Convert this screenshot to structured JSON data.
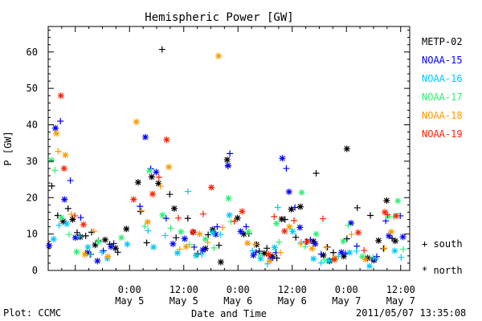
{
  "chart_data": {
    "type": "scatter",
    "title": "Hemispheric Power [GW]",
    "xlabel": "Date and Time",
    "ylabel": "P [GW]",
    "ylim": [
      0,
      67
    ],
    "yticks": [
      0,
      10,
      20,
      30,
      40,
      50,
      60
    ],
    "xlim": [
      "2011-05-04 06:00",
      "2011-05-07 14:00"
    ],
    "xticks": [
      {
        "at": "2011-05-05 00:00",
        "time": "0:00",
        "date": "May 5"
      },
      {
        "at": "2011-05-05 12:00",
        "time": "12:00",
        "date": "May 5"
      },
      {
        "at": "2011-05-06 00:00",
        "time": "0:00",
        "date": "May 6"
      },
      {
        "at": "2011-05-06 12:00",
        "time": "12:00",
        "date": "May 6"
      },
      {
        "at": "2011-05-07 00:00",
        "time": "0:00",
        "date": "May 7"
      },
      {
        "at": "2011-05-07 12:00",
        "time": "12:00",
        "date": "May 7"
      }
    ],
    "marker_legend": [
      {
        "marker": "plus",
        "label": "+ south"
      },
      {
        "marker": "star",
        "label": "* north"
      }
    ],
    "series": [
      {
        "name": "METP-02",
        "color": "#000000",
        "south": [
          [
            "2011-05-04 06:48",
            23.2
          ],
          [
            "2011-05-04 08:06",
            15.1
          ],
          [
            "2011-05-04 10:24",
            17.0
          ],
          [
            "2011-05-04 12:24",
            10.4
          ],
          [
            "2011-05-04 14:18",
            9.5
          ],
          [
            "2011-05-04 15:36",
            10.5
          ],
          [
            "2011-05-04 17:06",
            8.1
          ],
          [
            "2011-05-04 19:36",
            7.2
          ],
          [
            "2011-05-04 21:24",
            5.0
          ],
          [
            "2011-05-05 02:24",
            16.2
          ],
          [
            "2011-05-05 03:48",
            7.6
          ],
          [
            "2011-05-05 07:12",
            60.7
          ],
          [
            "2011-05-05 08:54",
            20.9
          ],
          [
            "2011-05-05 10:18",
            9.0
          ],
          [
            "2011-05-05 12:54",
            14.3
          ],
          [
            "2011-05-05 15:06",
            4.6
          ],
          [
            "2011-05-05 17:24",
            9.8
          ],
          [
            "2011-05-05 19:48",
            6.9
          ],
          [
            "2011-05-05 21:48",
            28.7
          ],
          [
            "2011-05-06 02:24",
            10.1
          ],
          [
            "2011-05-06 04:42",
            5.3
          ],
          [
            "2011-05-06 06:24",
            6.1
          ],
          [
            "2011-05-06 08:36",
            3.4
          ],
          [
            "2011-05-06 10:24",
            14.0
          ],
          [
            "2011-05-06 12:48",
            9.1
          ],
          [
            "2011-05-06 15:06",
            7.9
          ],
          [
            "2011-05-06 17:18",
            26.7
          ],
          [
            "2011-05-06 19:48",
            6.4
          ],
          [
            "2011-05-06 21:06",
            4.9
          ],
          [
            "2011-05-07 00:06",
            8.7
          ],
          [
            "2011-05-07 02:24",
            17.2
          ],
          [
            "2011-05-07 05:18",
            15.1
          ],
          [
            "2011-05-07 08:12",
            6.0
          ],
          [
            "2011-05-07 10:06",
            8.8
          ]
        ],
        "north": [
          [
            "2011-05-04 09:18",
            13.5
          ],
          [
            "2011-05-04 11:24",
            14.0
          ],
          [
            "2011-05-04 13:06",
            9.2
          ],
          [
            "2011-05-04 16:24",
            7.0
          ],
          [
            "2011-05-04 18:36",
            8.4
          ],
          [
            "2011-05-04 20:54",
            6.1
          ],
          [
            "2011-05-04 23:18",
            11.4
          ],
          [
            "2011-05-05 01:54",
            24.2
          ],
          [
            "2011-05-05 04:54",
            25.7
          ],
          [
            "2011-05-05 06:24",
            23.9
          ],
          [
            "2011-05-05 09:54",
            17.0
          ],
          [
            "2011-05-05 14:06",
            10.5
          ],
          [
            "2011-05-05 16:48",
            6.0
          ],
          [
            "2011-05-05 18:24",
            11.2
          ],
          [
            "2011-05-05 20:12",
            2.3
          ],
          [
            "2011-05-05 21:36",
            30.4
          ],
          [
            "2011-05-05 23:54",
            14.4
          ],
          [
            "2011-05-06 01:18",
            10.0
          ],
          [
            "2011-05-06 04:06",
            7.1
          ],
          [
            "2011-05-06 05:48",
            4.7
          ],
          [
            "2011-05-06 07:36",
            3.8
          ],
          [
            "2011-05-06 09:42",
            14.1
          ],
          [
            "2011-05-06 11:48",
            16.8
          ],
          [
            "2011-05-06 13:48",
            17.5
          ],
          [
            "2011-05-06 16:42",
            8.0
          ],
          [
            "2011-05-06 18:54",
            4.2
          ],
          [
            "2011-05-06 20:18",
            2.6
          ],
          [
            "2011-05-06 23:24",
            3.9
          ],
          [
            "2011-05-07 00:06",
            33.4
          ],
          [
            "2011-05-07 04:42",
            3.4
          ],
          [
            "2011-05-07 06:06",
            2.8
          ],
          [
            "2011-05-07 07:06",
            8.2
          ],
          [
            "2011-05-07 08:54",
            19.2
          ],
          [
            "2011-05-07 10:48",
            8.1
          ]
        ]
      },
      {
        "name": "NOAA-15",
        "color": "#0000ff",
        "south": [
          [
            "2011-05-04 08:42",
            41.0
          ],
          [
            "2011-05-04 10:54",
            24.7
          ],
          [
            "2011-05-04 13:12",
            14.5
          ],
          [
            "2011-05-04 15:24",
            4.4
          ],
          [
            "2011-05-04 18:12",
            5.4
          ],
          [
            "2011-05-04 20:30",
            7.4
          ],
          [
            "2011-05-05 02:18",
            17.6
          ],
          [
            "2011-05-05 04:42",
            27.9
          ],
          [
            "2011-05-05 08:06",
            14.3
          ],
          [
            "2011-05-05 14:18",
            6.4
          ],
          [
            "2011-05-05 19:24",
            12.0
          ],
          [
            "2011-05-05 22:12",
            32.1
          ],
          [
            "2011-05-06 01:48",
            12.0
          ],
          [
            "2011-05-06 04:00",
            5.0
          ],
          [
            "2011-05-06 08:24",
            4.9
          ],
          [
            "2011-05-06 10:42",
            28.0
          ],
          [
            "2011-05-06 12:36",
            17.3
          ],
          [
            "2011-05-06 16:00",
            8.4
          ],
          [
            "2011-05-06 18:24",
            4.5
          ],
          [
            "2011-05-06 23:48",
            4.6
          ],
          [
            "2011-05-07 02:18",
            6.7
          ],
          [
            "2011-05-07 06:42",
            3.8
          ],
          [
            "2011-05-07 08:42",
            13.6
          ],
          [
            "2011-05-07 11:54",
            15.0
          ]
        ],
        "north": [
          [
            "2011-05-04 06:12",
            6.8
          ],
          [
            "2011-05-04 07:36",
            39.1
          ],
          [
            "2011-05-04 09:36",
            19.5
          ],
          [
            "2011-05-04 12:00",
            9.0
          ],
          [
            "2011-05-04 14:42",
            4.9
          ],
          [
            "2011-05-04 16:54",
            2.6
          ],
          [
            "2011-05-04 19:54",
            6.5
          ],
          [
            "2011-05-05 03:30",
            36.6
          ],
          [
            "2011-05-05 05:54",
            27.0
          ],
          [
            "2011-05-05 09:36",
            7.3
          ],
          [
            "2011-05-05 12:12",
            8.7
          ],
          [
            "2011-05-05 16:12",
            5.6
          ],
          [
            "2011-05-05 19:06",
            9.9
          ],
          [
            "2011-05-05 21:48",
            28.8
          ],
          [
            "2011-05-06 00:36",
            10.7
          ],
          [
            "2011-05-06 03:24",
            4.2
          ],
          [
            "2011-05-06 07:18",
            3.3
          ],
          [
            "2011-05-06 09:48",
            30.8
          ],
          [
            "2011-05-06 11:18",
            21.6
          ],
          [
            "2011-05-06 13:42",
            11.8
          ],
          [
            "2011-05-06 17:06",
            7.3
          ],
          [
            "2011-05-06 22:54",
            5.0
          ],
          [
            "2011-05-07 01:00",
            13.0
          ],
          [
            "2011-05-07 06:06",
            3.1
          ],
          [
            "2011-05-07 09:24",
            9.5
          ],
          [
            "2011-05-07 12:30",
            9.2
          ]
        ]
      },
      {
        "name": "NOAA-16",
        "color": "#00c8ff",
        "south": [
          [
            "2011-05-04 08:24",
            12.4
          ],
          [
            "2011-05-04 12:54",
            9.3
          ],
          [
            "2011-05-04 17:54",
            5.0
          ],
          [
            "2011-05-05 04:06",
            10.9
          ],
          [
            "2011-05-05 07:54",
            9.6
          ],
          [
            "2011-05-05 12:54",
            21.7
          ],
          [
            "2011-05-05 16:00",
            4.4
          ],
          [
            "2011-05-05 20:06",
            9.9
          ],
          [
            "2011-05-06 03:12",
            5.4
          ],
          [
            "2011-05-06 06:30",
            1.8
          ],
          [
            "2011-05-06 08:48",
            17.3
          ],
          [
            "2011-05-06 14:00",
            7.7
          ],
          [
            "2011-05-06 18:24",
            2.1
          ],
          [
            "2011-05-06 22:12",
            3.9
          ],
          [
            "2011-05-07 02:12",
            5.3
          ],
          [
            "2011-05-07 06:30",
            3.2
          ],
          [
            "2011-05-07 12:06",
            3.6
          ]
        ],
        "north": [
          [
            "2011-05-04 07:12",
            8.6
          ],
          [
            "2011-05-04 10:06",
            12.8
          ],
          [
            "2011-05-04 14:48",
            6.4
          ],
          [
            "2011-05-04 19:06",
            3.3
          ],
          [
            "2011-05-04 23:30",
            7.2
          ],
          [
            "2011-05-05 05:18",
            6.4
          ],
          [
            "2011-05-05 10:36",
            4.8
          ],
          [
            "2011-05-05 14:42",
            4.1
          ],
          [
            "2011-05-05 18:24",
            10.4
          ],
          [
            "2011-05-05 22:06",
            15.2
          ],
          [
            "2011-05-06 05:00",
            3.3
          ],
          [
            "2011-05-06 08:06",
            6.3
          ],
          [
            "2011-05-06 12:06",
            10.7
          ],
          [
            "2011-05-06 16:42",
            3.2
          ],
          [
            "2011-05-06 20:06",
            2.7
          ],
          [
            "2011-05-07 00:42",
            4.9
          ],
          [
            "2011-05-07 05:06",
            1.2
          ],
          [
            "2011-05-07 10:42",
            5.4
          ]
        ]
      },
      {
        "name": "NOAA-17",
        "color": "#33ee77",
        "south": [
          [
            "2011-05-04 07:30",
            27.5
          ],
          [
            "2011-05-04 10:36",
            9.9
          ],
          [
            "2011-05-04 15:12",
            4.3
          ],
          [
            "2011-05-05 03:24",
            12.1
          ],
          [
            "2011-05-05 09:06",
            11.6
          ],
          [
            "2011-05-05 13:18",
            7.1
          ],
          [
            "2011-05-05 18:42",
            6.2
          ],
          [
            "2011-05-05 22:24",
            13.4
          ],
          [
            "2011-05-06 05:00",
            4.2
          ],
          [
            "2011-05-06 09:06",
            7.8
          ],
          [
            "2011-05-06 14:54",
            6.5
          ],
          [
            "2011-05-06 19:06",
            2.9
          ],
          [
            "2011-05-07 00:24",
            12.4
          ],
          [
            "2011-05-07 05:54",
            3.6
          ],
          [
            "2011-05-07 10:30",
            14.7
          ],
          [
            "2011-05-07 12:36",
            5.8
          ]
        ],
        "north": [
          [
            "2011-05-04 06:42",
            30.3
          ],
          [
            "2011-05-04 08:54",
            14.5
          ],
          [
            "2011-05-04 12:18",
            5.1
          ],
          [
            "2011-05-04 17:06",
            7.9
          ],
          [
            "2011-05-04 22:12",
            9.0
          ],
          [
            "2011-05-05 04:24",
            27.4
          ],
          [
            "2011-05-05 07:18",
            15.2
          ],
          [
            "2011-05-05 11:24",
            10.6
          ],
          [
            "2011-05-05 16:48",
            8.6
          ],
          [
            "2011-05-05 21:54",
            19.8
          ],
          [
            "2011-05-06 02:18",
            10.6
          ],
          [
            "2011-05-06 08:30",
            12.9
          ],
          [
            "2011-05-06 14:06",
            21.4
          ],
          [
            "2011-05-06 17:18",
            10.0
          ],
          [
            "2011-05-06 23:18",
            8.0
          ],
          [
            "2011-05-07 03:30",
            3.8
          ],
          [
            "2011-05-07 09:12",
            14.8
          ],
          [
            "2011-05-07 11:24",
            19.1
          ]
        ]
      },
      {
        "name": "NOAA-18",
        "color": "#ff9900",
        "south": [
          [
            "2011-05-04 08:12",
            32.7
          ],
          [
            "2011-05-04 11:06",
            15.4
          ],
          [
            "2011-05-04 16:06",
            10.8
          ],
          [
            "2011-05-05 02:42",
            16.4
          ],
          [
            "2011-05-05 06:54",
            23.1
          ],
          [
            "2011-05-05 11:06",
            5.8
          ],
          [
            "2011-05-05 17:18",
            7.7
          ],
          [
            "2011-05-05 20:36",
            11.8
          ],
          [
            "2011-05-06 03:48",
            7.2
          ],
          [
            "2011-05-06 09:24",
            4.9
          ],
          [
            "2011-05-06 13:54",
            7.3
          ],
          [
            "2011-05-06 19:30",
            6.3
          ],
          [
            "2011-05-07 01:06",
            9.9
          ],
          [
            "2011-05-07 08:24",
            6.1
          ]
        ],
        "north": [
          [
            "2011-05-04 07:48",
            37.6
          ],
          [
            "2011-05-04 09:48",
            31.7
          ],
          [
            "2011-05-04 14:06",
            4.4
          ],
          [
            "2011-05-04 19:12",
            3.8
          ],
          [
            "2011-05-05 01:30",
            40.8
          ],
          [
            "2011-05-05 04:00",
            13.3
          ],
          [
            "2011-05-05 08:42",
            28.4
          ],
          [
            "2011-05-05 12:30",
            6.5
          ],
          [
            "2011-05-05 15:30",
            10.0
          ],
          [
            "2011-05-05 19:42",
            58.9
          ],
          [
            "2011-05-06 02:06",
            7.5
          ],
          [
            "2011-05-06 07:00",
            2.6
          ],
          [
            "2011-05-06 11:24",
            12.0
          ],
          [
            "2011-05-06 16:24",
            6.0
          ],
          [
            "2011-05-06 21:30",
            3.3
          ],
          [
            "2011-05-07 04:12",
            3.0
          ],
          [
            "2011-05-07 09:54",
            10.6
          ]
        ]
      },
      {
        "name": "NOAA-19",
        "color": "#ff2200",
        "south": [
          [
            "2011-05-04 11:54",
            15.0
          ],
          [
            "2011-05-05 06:30",
            25.6
          ],
          [
            "2011-05-05 10:48",
            14.4
          ],
          [
            "2011-05-05 16:18",
            15.5
          ],
          [
            "2011-05-05 23:12",
            13.5
          ],
          [
            "2011-05-06 08:00",
            14.8
          ],
          [
            "2011-05-06 12:24",
            13.7
          ],
          [
            "2011-05-06 18:48",
            14.2
          ],
          [
            "2011-05-07 03:54",
            5.5
          ],
          [
            "2011-05-07 09:06",
            15.3
          ]
        ],
        "north": [
          [
            "2011-05-04 08:48",
            48.0
          ],
          [
            "2011-05-04 09:30",
            28.0
          ],
          [
            "2011-05-04 13:48",
            12.6
          ],
          [
            "2011-05-05 00:54",
            19.5
          ],
          [
            "2011-05-05 05:06",
            21.0
          ],
          [
            "2011-05-05 08:12",
            35.9
          ],
          [
            "2011-05-05 14:00",
            10.6
          ],
          [
            "2011-05-05 18:06",
            22.8
          ],
          [
            "2011-05-06 00:54",
            16.2
          ],
          [
            "2011-05-06 06:48",
            4.4
          ],
          [
            "2011-05-06 10:18",
            10.8
          ],
          [
            "2011-05-06 15:18",
            7.9
          ],
          [
            "2011-05-06 21:18",
            3.0
          ],
          [
            "2011-05-07 02:36",
            10.4
          ],
          [
            "2011-05-07 08:30",
            16.0
          ],
          [
            "2011-05-07 11:00",
            15.0
          ]
        ]
      }
    ]
  },
  "footer": {
    "plot_credit": "Plot: CCMC",
    "timestamp": "2011/05/07 13:35:08"
  }
}
